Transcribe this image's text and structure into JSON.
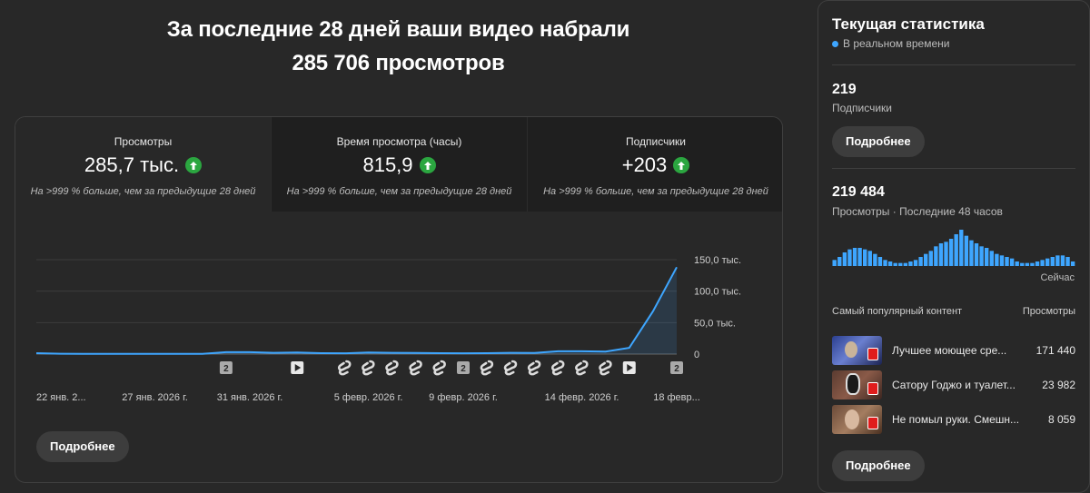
{
  "headline": {
    "line1": "За последние 28 дней ваши видео набрали",
    "line2": "285 706 просмотров"
  },
  "tabs": [
    {
      "label": "Просмотры",
      "value": "285,7 тыс.",
      "note": "На >999 % больше, чем за предыдущие 28 дней"
    },
    {
      "label": "Время просмотра (часы)",
      "value": "815,9",
      "note": "На >999 % больше, чем за предыдущие 28 дней"
    },
    {
      "label": "Подписчики",
      "value": "+203",
      "note": "На >999 % больше, чем за предыдущие 28 дней"
    }
  ],
  "chart_data": {
    "type": "line",
    "y_ticks": [
      "150,0 тыс.",
      "100,0 тыс.",
      "50,0 тыс.",
      "0"
    ],
    "ylim": [
      0,
      150000
    ],
    "x_ticks": [
      {
        "label": "22 янв. 2...",
        "day": 0
      },
      {
        "label": "27 янв. 2026 г.",
        "day": 5
      },
      {
        "label": "31 янв. 2026 г.",
        "day": 9
      },
      {
        "label": "5 февр. 2026 г.",
        "day": 14
      },
      {
        "label": "9 февр. 2026 г.",
        "day": 18
      },
      {
        "label": "14 февр. 2026 г.",
        "day": 23
      },
      {
        "label": "18 февр...",
        "day": 27
      }
    ],
    "values": [
      1500,
      500,
      300,
      400,
      300,
      300,
      400,
      400,
      3000,
      3000,
      2000,
      2500,
      1500,
      1200,
      2500,
      2000,
      1800,
      1500,
      1200,
      1500,
      2000,
      1800,
      4500,
      4500,
      4000,
      10000,
      68000,
      138000
    ],
    "markers": [
      {
        "day": 8,
        "type": "count",
        "text": "2"
      },
      {
        "day": 11,
        "type": "video"
      },
      {
        "day": 13,
        "type": "short"
      },
      {
        "day": 14,
        "type": "short"
      },
      {
        "day": 15,
        "type": "short"
      },
      {
        "day": 16,
        "type": "short"
      },
      {
        "day": 17,
        "type": "short"
      },
      {
        "day": 18,
        "type": "count",
        "text": "2"
      },
      {
        "day": 19,
        "type": "short"
      },
      {
        "day": 20,
        "type": "short"
      },
      {
        "day": 21,
        "type": "short"
      },
      {
        "day": 22,
        "type": "short"
      },
      {
        "day": 23,
        "type": "short"
      },
      {
        "day": 24,
        "type": "short"
      },
      {
        "day": 25,
        "type": "video"
      },
      {
        "day": 27,
        "type": "count",
        "text": "2"
      }
    ],
    "line_color": "#3ea6ff"
  },
  "main_more_label": "Подробнее",
  "side": {
    "title": "Текущая статистика",
    "live": "В реальном времени",
    "subs_value": "219",
    "subs_label": "Подписчики",
    "subs_more_label": "Подробнее",
    "views_value": "219 484",
    "views_label": "Просмотры · Последние 48 часов",
    "now_label": "Сейчас",
    "hourly_views": [
      4,
      6,
      9,
      11,
      12,
      12,
      11,
      10,
      8,
      6,
      4,
      3,
      2,
      2,
      2,
      3,
      4,
      6,
      8,
      10,
      13,
      15,
      16,
      18,
      21,
      24,
      20,
      17,
      15,
      13,
      12,
      10,
      8,
      7,
      6,
      5,
      3,
      2,
      2,
      2,
      3,
      4,
      5,
      6,
      7,
      7,
      6,
      3
    ],
    "top_header": "Самый популярный контент",
    "top_views_header": "Просмотры",
    "top_items": [
      {
        "title": "Лучшее моющее сре...",
        "views": "171 440"
      },
      {
        "title": "Сатору Годжо и туалет...",
        "views": "23 982"
      },
      {
        "title": "Не помыл руки. Смешн...",
        "views": "8 059"
      }
    ],
    "bottom_more_label": "Подробнее"
  }
}
